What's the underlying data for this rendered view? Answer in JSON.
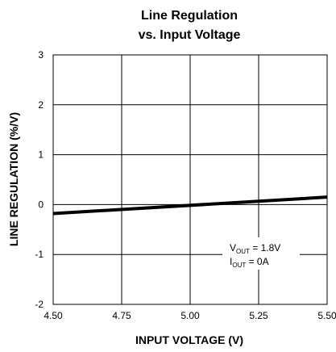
{
  "chart_data": {
    "type": "line",
    "title": [
      "Line Regulation",
      "vs. Input Voltage"
    ],
    "xlabel": "INPUT VOLTAGE (V)",
    "ylabel": "LINE REGULATION (%/V)",
    "xlim": [
      4.5,
      5.5
    ],
    "ylim": [
      -2,
      3
    ],
    "x_ticks": [
      4.5,
      4.75,
      5.0,
      5.25,
      5.5
    ],
    "x_tick_labels": [
      "4.50",
      "4.75",
      "5.00",
      "5.25",
      "5.50"
    ],
    "y_ticks": [
      -2,
      -1,
      0,
      1,
      2,
      3
    ],
    "y_tick_labels": [
      "-2",
      "-1",
      "0",
      "1",
      "2",
      "3"
    ],
    "grid": true,
    "series": [
      {
        "x": [
          4.5,
          5.5
        ],
        "y": [
          -0.18,
          0.15
        ]
      }
    ],
    "annotation": {
      "line1": {
        "main": "V",
        "sub": "OUT",
        "rest": " = 1.8V"
      },
      "line2": {
        "main": "I",
        "sub": "OUT",
        "rest": " = 0A"
      }
    },
    "colors": {
      "line": "#000000",
      "grid": "#000000"
    }
  }
}
